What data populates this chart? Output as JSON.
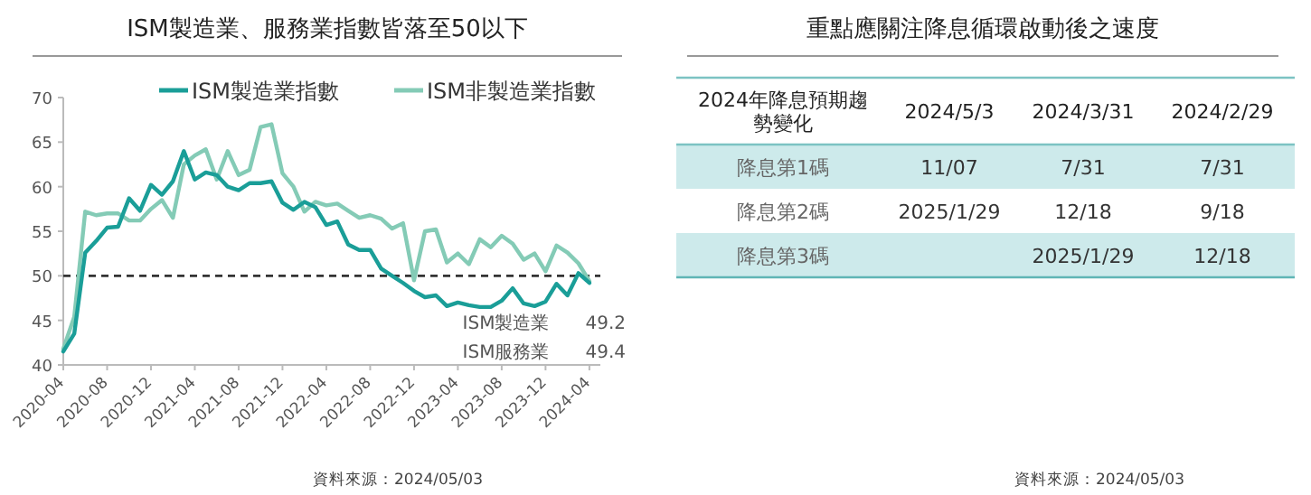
{
  "chart_data": [
    {
      "type": "line",
      "title": "ISM製造業、服務業指數皆落至50以下",
      "x": [
        "2020-04",
        "2020-05",
        "2020-06",
        "2020-07",
        "2020-08",
        "2020-09",
        "2020-10",
        "2020-11",
        "2020-12",
        "2021-01",
        "2021-02",
        "2021-03",
        "2021-04",
        "2021-05",
        "2021-06",
        "2021-07",
        "2021-08",
        "2021-09",
        "2021-10",
        "2021-11",
        "2021-12",
        "2022-01",
        "2022-02",
        "2022-03",
        "2022-04",
        "2022-05",
        "2022-06",
        "2022-07",
        "2022-08",
        "2022-09",
        "2022-10",
        "2022-11",
        "2022-12",
        "2023-01",
        "2023-02",
        "2023-03",
        "2023-04",
        "2023-05",
        "2023-06",
        "2023-07",
        "2023-08",
        "2023-09",
        "2023-10",
        "2023-11",
        "2023-12",
        "2024-01",
        "2024-02",
        "2024-03",
        "2024-04"
      ],
      "series": [
        {
          "name": "ISM製造業指數",
          "color": "#1a9e98",
          "values": [
            41.5,
            43.5,
            52.6,
            53.9,
            55.4,
            55.5,
            58.7,
            57.3,
            60.2,
            59.1,
            60.6,
            64.0,
            60.8,
            61.6,
            61.3,
            60.0,
            59.6,
            60.4,
            60.4,
            60.6,
            58.2,
            57.4,
            58.3,
            57.7,
            55.7,
            56.1,
            53.5,
            52.9,
            52.9,
            50.8,
            50.0,
            49.2,
            48.3,
            47.6,
            47.8,
            46.6,
            47.0,
            46.7,
            46.5,
            46.5,
            47.2,
            48.6,
            46.9,
            46.6,
            47.1,
            49.1,
            47.8,
            50.3,
            49.2
          ]
        },
        {
          "name": "ISM非製造業指數",
          "color": "#84cbb6",
          "values": [
            41.8,
            45.4,
            57.2,
            56.8,
            57.0,
            57.0,
            56.2,
            56.2,
            57.5,
            58.5,
            56.5,
            62.5,
            63.5,
            64.2,
            60.8,
            64.0,
            61.3,
            61.9,
            66.7,
            67.0,
            61.5,
            60.0,
            57.2,
            58.3,
            57.9,
            58.1,
            57.3,
            56.5,
            56.8,
            56.4,
            55.3,
            55.9,
            49.5,
            55.0,
            55.2,
            51.5,
            52.5,
            51.3,
            54.1,
            53.2,
            54.5,
            53.6,
            51.8,
            52.5,
            50.5,
            53.4,
            52.6,
            51.4,
            49.4
          ]
        }
      ],
      "xlim": [
        "2020-04",
        "2024-05"
      ],
      "xticks": [
        "2020-04",
        "2020-08",
        "2020-12",
        "2021-04",
        "2021-08",
        "2021-12",
        "2022-04",
        "2022-08",
        "2022-12",
        "2023-04",
        "2023-08",
        "2023-12",
        "2024-04"
      ],
      "ylim": [
        40,
        70
      ],
      "yticks": [
        40,
        45,
        50,
        55,
        60,
        65,
        70
      ],
      "ref_lines": [
        {
          "axis": "y",
          "value": 50,
          "line_style": "dashed",
          "color": "#333333"
        }
      ],
      "legend": "top",
      "annotations": [
        "ISM製造業　　49.2",
        "ISM服務業　　49.4",
        "資料來源：2024/05/03"
      ]
    },
    {
      "type": "other",
      "title": "重點應關注降息循環啟動後之速度",
      "categories": [
        "2024年降息預期趨勢變化",
        "2024/5/3",
        "2024/3/31",
        "2024/2/29"
      ],
      "cell_labels": [
        [
          "降息第1碼",
          "11/07",
          "7/31",
          "7/31"
        ],
        [
          "降息第2碼",
          "2025/1/29",
          "12/18",
          "9/18"
        ],
        [
          "降息第3碼",
          null,
          "2025/1/29",
          "12/18"
        ]
      ],
      "annotations": [
        "資料來源：2024/05/03"
      ]
    }
  ]
}
